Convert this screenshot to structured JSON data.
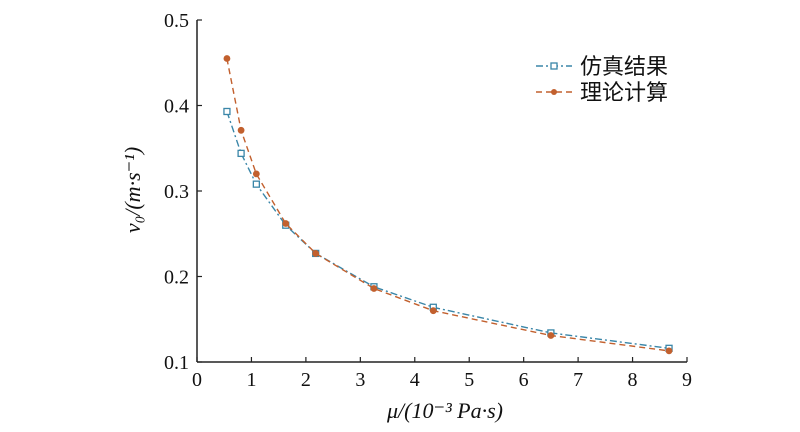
{
  "chart_data": {
    "type": "line",
    "title": "",
    "xlabel": "μ/(10⁻³ Pa·s)",
    "ylabel": "v₀/(m·s⁻¹)",
    "xlim": [
      0,
      9
    ],
    "ylim": [
      0.1,
      0.5
    ],
    "xticks": [
      "0",
      "1",
      "2",
      "3",
      "4",
      "5",
      "6",
      "7",
      "8",
      "9"
    ],
    "yticks": [
      "0.1",
      "0.2",
      "0.3",
      "0.4",
      "0.5"
    ],
    "grid": false,
    "legend_position": "top-right",
    "series": [
      {
        "name": "仿真结果",
        "color": "#3a86a8",
        "marker": "square-open",
        "line": "dash-dot",
        "x": [
          0.55,
          0.81,
          1.09,
          1.63,
          2.18,
          3.25,
          4.34,
          6.5,
          8.67
        ],
        "y": [
          0.393,
          0.344,
          0.308,
          0.26,
          0.227,
          0.188,
          0.164,
          0.134,
          0.116
        ]
      },
      {
        "name": "理论计算",
        "color": "#c2602e",
        "marker": "dot",
        "line": "dash",
        "x": [
          0.55,
          0.81,
          1.09,
          1.63,
          2.18,
          3.25,
          4.34,
          6.5,
          8.67
        ],
        "y": [
          0.455,
          0.371,
          0.32,
          0.262,
          0.227,
          0.186,
          0.16,
          0.131,
          0.113
        ]
      }
    ]
  }
}
